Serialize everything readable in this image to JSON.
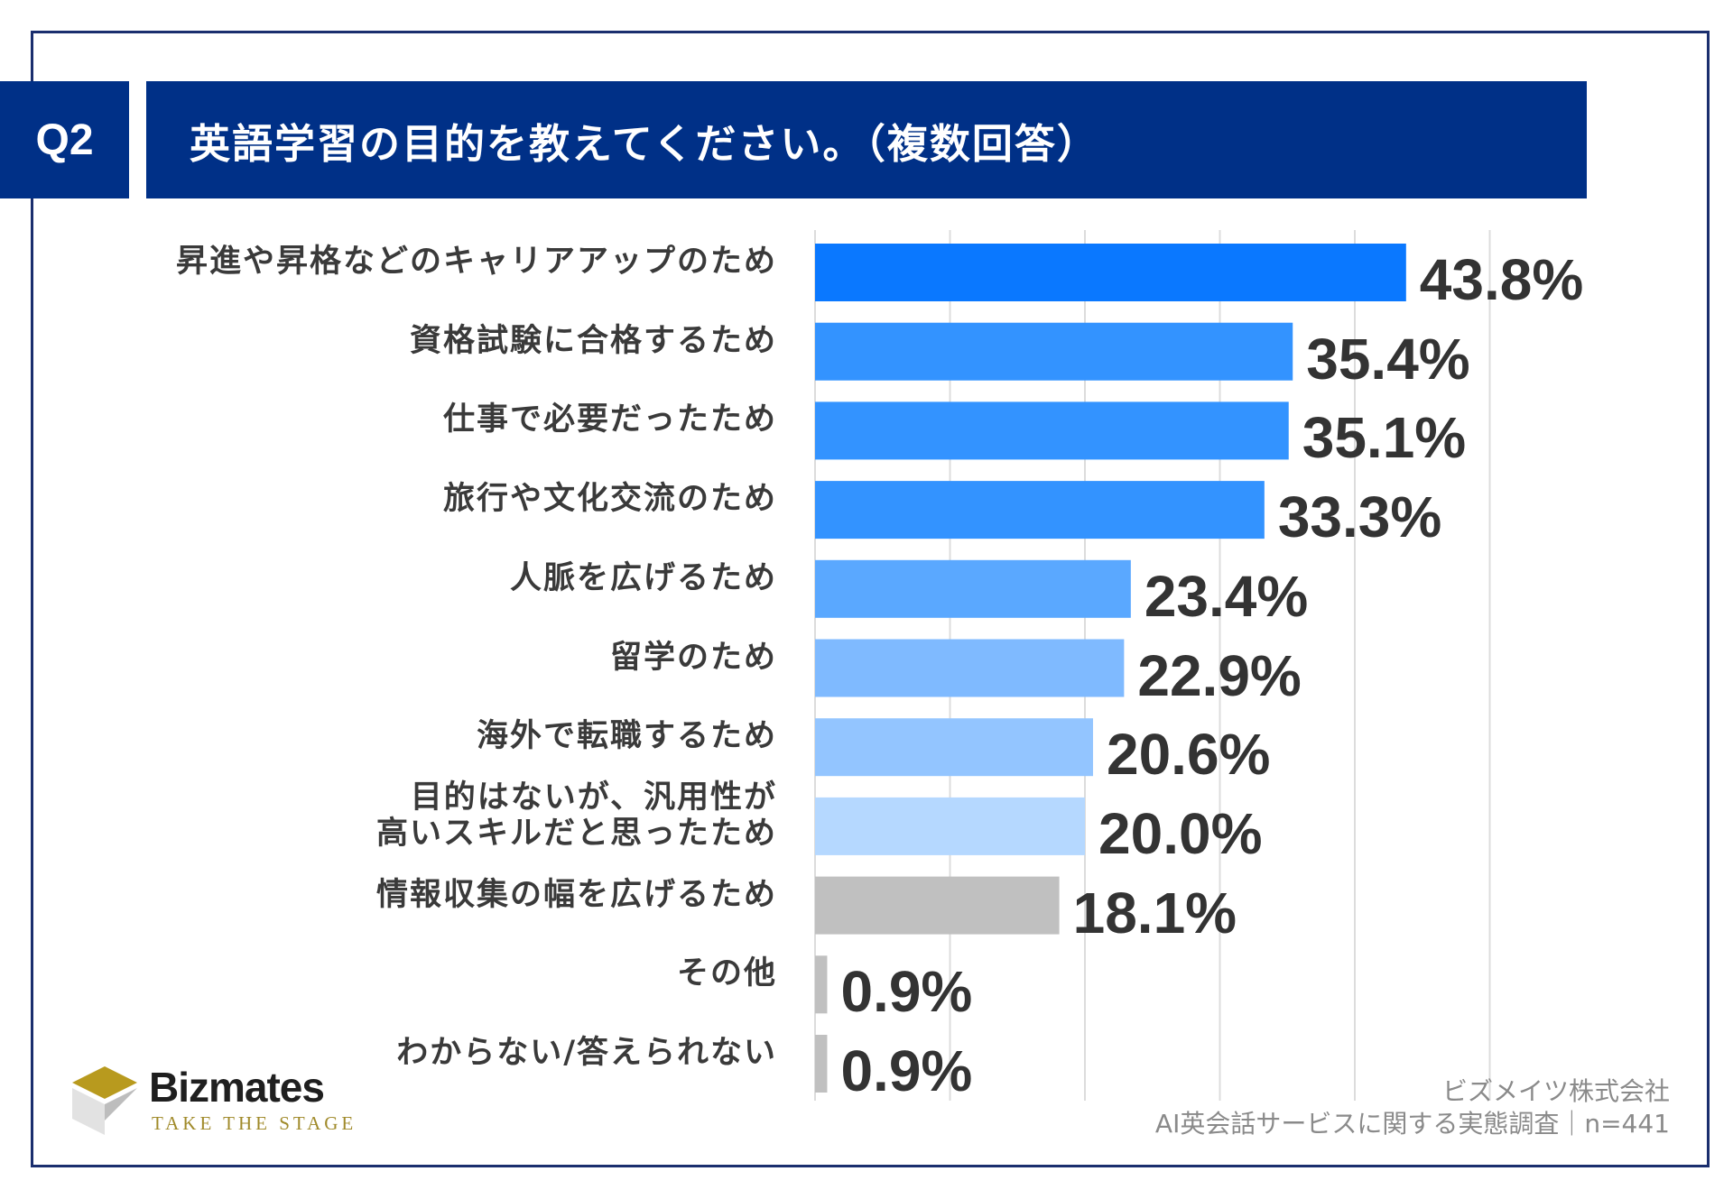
{
  "header": {
    "badge": "Q2",
    "title": "英語学習の目的を教えてください。（複数回答）"
  },
  "chart_data": {
    "type": "bar",
    "orientation": "horizontal",
    "categories": [
      "昇進や昇格などのキャリアアップのため",
      "資格試験に合格するため",
      "仕事で必要だったため",
      "旅行や文化交流のため",
      "人脈を広げるため",
      "留学のため",
      "海外で転職するため",
      "目的はないが、汎用性が\n高いスキルだと思ったため",
      "情報収集の幅を広げるため",
      "その他",
      "わからない/答えられない"
    ],
    "values": [
      43.8,
      35.4,
      35.1,
      33.3,
      23.4,
      22.9,
      20.6,
      20.0,
      18.1,
      0.9,
      0.9
    ],
    "value_labels": [
      "43.8%",
      "35.4%",
      "35.1%",
      "33.3%",
      "23.4%",
      "22.9%",
      "20.6%",
      "20.0%",
      "18.1%",
      "0.9%",
      "0.9%"
    ],
    "colors": [
      "#0a78ff",
      "#3393ff",
      "#3393ff",
      "#3393ff",
      "#5aa8ff",
      "#7fbaff",
      "#93c5ff",
      "#b5d8ff",
      "#c0c0c0",
      "#c0c0c0",
      "#c0c0c0"
    ],
    "xlim": [
      0,
      50
    ],
    "grid": true,
    "ylabel": "",
    "xlabel": ""
  },
  "logo": {
    "name": "Bizmates",
    "tagline": "TAKE THE STAGE",
    "colors": {
      "gold": "#b89a1e",
      "gray": "#bdbdbd"
    }
  },
  "source": {
    "line1": "ビズメイツ株式会社",
    "line2": "AI英会話サービスに関する実態調査｜n=441"
  }
}
